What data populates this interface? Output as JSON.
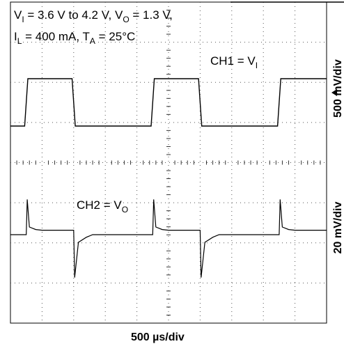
{
  "chart_data": {
    "type": "line",
    "title": "",
    "annotations": {
      "line1": {
        "v": "V",
        "vi_sub": "I",
        "range": " = 3.6 V to 4.2 V, V",
        "vo_sub": "O",
        "vo_value": " = 1.3 V,"
      },
      "line2": {
        "i": "I",
        "il_sub": "L",
        "load": " = 400 mA, T",
        "ta_sub": "A",
        "temp": " = 25°C"
      }
    },
    "channels": {
      "ch1": {
        "label": "CH1 =  V",
        "sub": "I"
      },
      "ch2": {
        "label": "CH2 =  V",
        "sub": "O"
      }
    },
    "xlabel": "500 µs/div",
    "ylabel_upper": "500 mV/div",
    "ylabel_lower": "20 mV/div",
    "grid": true,
    "grid_divisions": {
      "x": 10,
      "y": 8
    },
    "x_unit": "div",
    "series": [
      {
        "name": "CH1 = VI",
        "x": [
          0,
          0.45,
          0.55,
          1.95,
          2.05,
          4.45,
          4.55,
          5.95,
          6.05,
          8.45,
          8.55,
          10
        ],
        "y": [
          3.6,
          3.6,
          4.2,
          4.2,
          3.6,
          3.6,
          4.2,
          4.2,
          3.6,
          3.6,
          4.2,
          4.2
        ]
      },
      {
        "name": "CH2 = VO",
        "x": [
          0,
          0.5,
          0.53,
          0.6,
          0.8,
          1.0,
          1.98,
          2.0,
          2.03,
          2.15,
          2.4,
          2.6,
          4.5,
          4.53,
          4.6,
          4.8,
          5.0,
          5.98,
          6.0,
          6.03,
          6.15,
          6.4,
          6.6,
          8.5,
          8.53,
          8.6,
          8.8,
          9.0,
          10
        ],
        "y": [
          1.3,
          1.3,
          1.355,
          1.312,
          1.308,
          1.307,
          1.307,
          1.307,
          1.233,
          1.288,
          1.296,
          1.3,
          1.3,
          1.355,
          1.312,
          1.308,
          1.307,
          1.307,
          1.307,
          1.233,
          1.288,
          1.296,
          1.3,
          1.3,
          1.355,
          1.312,
          1.308,
          1.307,
          1.307
        ]
      }
    ]
  }
}
